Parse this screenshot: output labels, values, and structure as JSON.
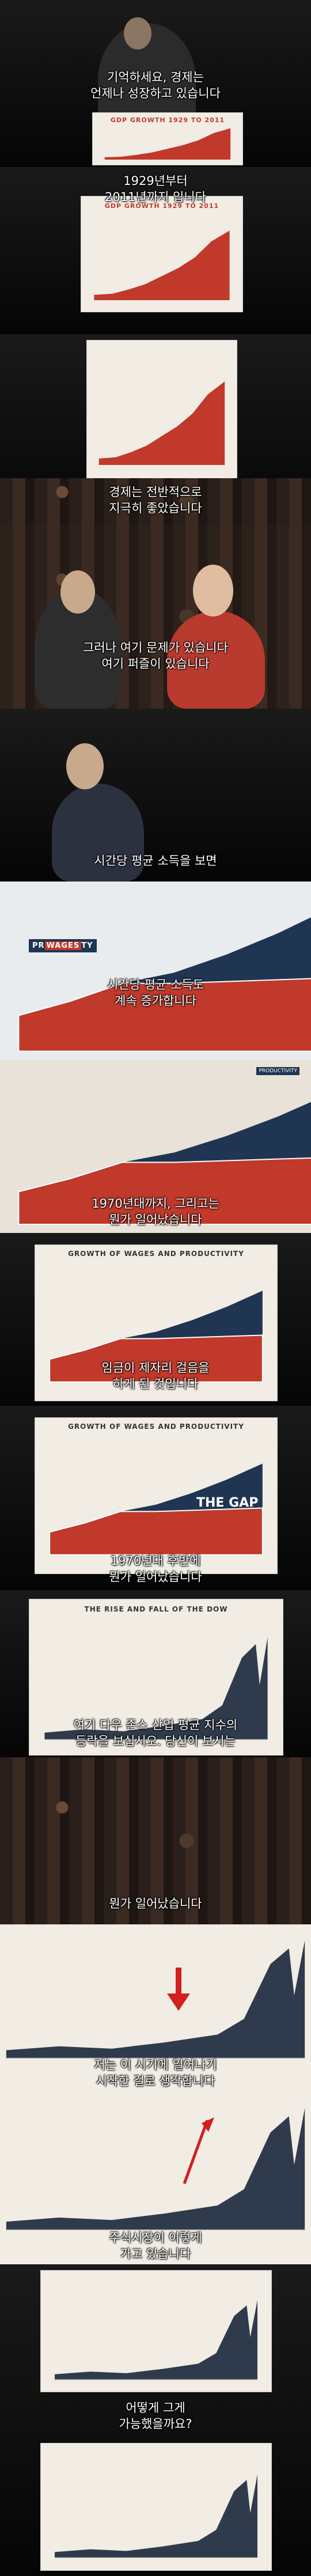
{
  "panels": [
    {
      "id": "p1",
      "caption": "기억하세요, 경제는\n언제나 성장하고 있습니다",
      "chart_title": "GDP GROWTH 1929 TO 2011",
      "chart_sub": ""
    },
    {
      "id": "p2",
      "caption": "1929년부터\n2011년까지 입니다",
      "chart_title": "GDP GROWTH 1929 TO 2011",
      "chart_sub": ""
    },
    {
      "id": "p3",
      "caption": "경제는 전반적으로\n지극히 좋았습니다"
    },
    {
      "id": "p4",
      "caption": "그러나 여기 문제가 있습니다\n여기 퍼즐이 있습니다"
    },
    {
      "id": "p5",
      "caption": "시간당 평균 소득을 보면"
    },
    {
      "id": "p6",
      "caption": "시간당 평균 소득도\n계속 증가합니다",
      "badge_pre": "PR",
      "badge_hl": "WAGES",
      "badge_post": "TY"
    },
    {
      "id": "p7",
      "caption": "1970년대까지, 그리고는\n뭔가 일어났습니다",
      "tag": "PRODUCTIVITY"
    },
    {
      "id": "p8",
      "caption": "임금이 제자리 걸음을\n하게 된 것입니다",
      "chart_title": "GROWTH OF WAGES AND PRODUCTIVITY"
    },
    {
      "id": "p9",
      "caption": "1970년대 후반에\n뭔가 일어났습니다",
      "chart_title": "GROWTH OF WAGES AND PRODUCTIVITY",
      "gap_label": "THE GAP"
    },
    {
      "id": "p10",
      "caption": "여기 다우 존스 산업 평균 지수의\n등락을 보십시오. 당신이 보시는",
      "chart_title": "THE RISE AND FALL OF THE DOW"
    },
    {
      "id": "p11",
      "caption": "뭔가 일어났습니다"
    },
    {
      "id": "p12",
      "caption": "저는 이 시기에 일어나기\n시작한 걸로 생각합니다"
    },
    {
      "id": "p13",
      "caption": "주식시장이 이렇게\n가고 있습니다"
    },
    {
      "id": "p14",
      "caption": "어떻게 그게\n가능했을까요?"
    }
  ],
  "colors": {
    "red": "#c0392b",
    "navy": "#1f3552",
    "cream": "#f1ece4",
    "dow": "#2f3b4c"
  },
  "chart_data": [
    {
      "type": "area",
      "title": "GDP GROWTH 1929 TO 2011",
      "x": [
        1929,
        1940,
        1950,
        1960,
        1970,
        1980,
        1990,
        2000,
        2011
      ],
      "values": [
        1,
        1.2,
        2,
        3,
        4.5,
        6,
        8,
        11,
        13
      ],
      "ylim": [
        0,
        14
      ]
    },
    {
      "type": "area",
      "title": "GROWTH OF WAGES AND PRODUCTIVITY",
      "x": [
        1950,
        1960,
        1970,
        1980,
        1990,
        2000,
        2010
      ],
      "series": [
        {
          "values": [
            1,
            1.4,
            1.9,
            2.2,
            2.7,
            3.3,
            4.0
          ]
        },
        {
          "values": [
            1,
            1.4,
            1.9,
            1.9,
            1.95,
            2.0,
            2.05
          ]
        }
      ],
      "ylim": [
        0,
        4.5
      ]
    },
    {
      "type": "area",
      "title": "THE RISE AND FALL OF THE DOW",
      "x": [
        1900,
        1920,
        1940,
        1960,
        1980,
        1990,
        2000,
        2007,
        2009,
        2013
      ],
      "values": [
        1,
        1.5,
        1.2,
        2,
        3,
        5,
        12,
        14,
        8,
        15
      ],
      "ylim": [
        0,
        16
      ]
    }
  ]
}
